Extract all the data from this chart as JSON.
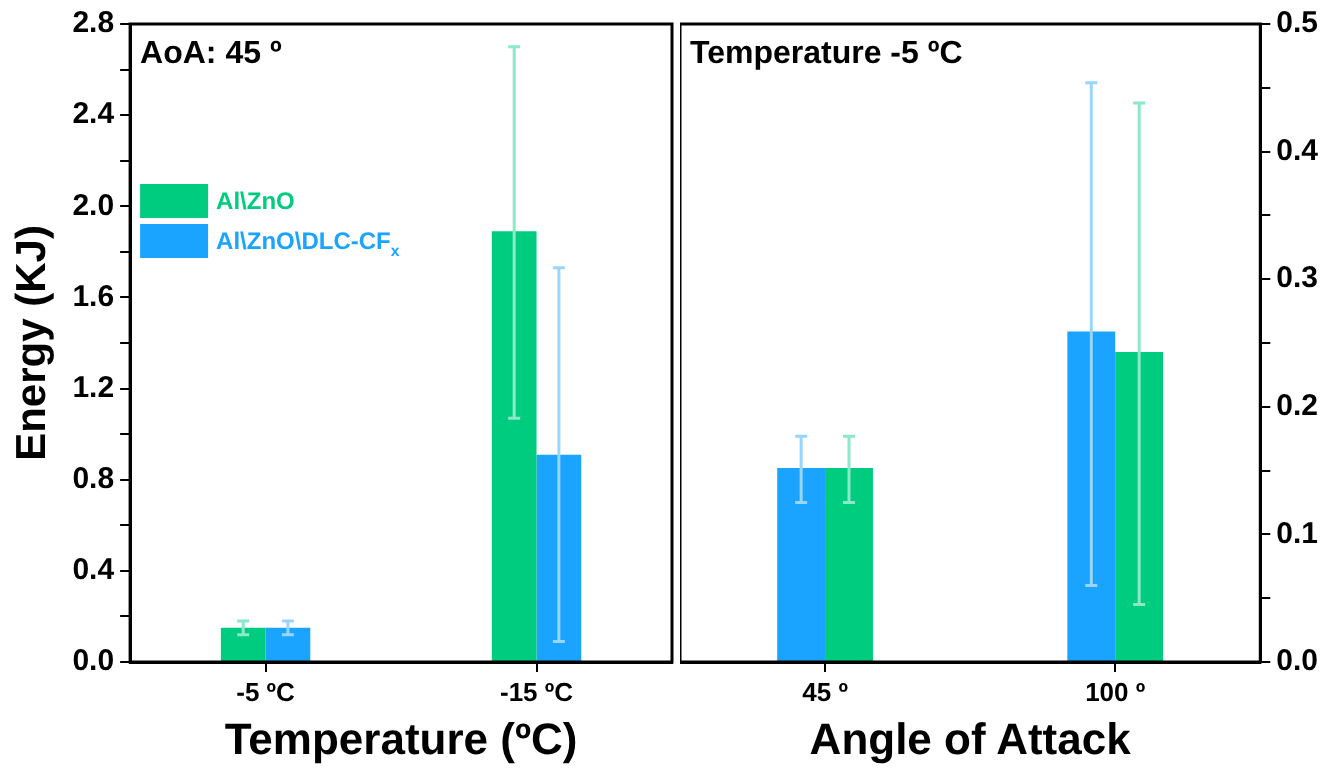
{
  "chart_data": [
    {
      "type": "bar",
      "xlabel": "Temperature (ºC)",
      "ylabel": "Energy (KJ)",
      "categories": [
        "-5 ºC",
        "-15 ºC"
      ],
      "series": [
        {
          "name": "Al\\ZnO",
          "color": "#00cc80",
          "values": [
            0.15,
            1.89
          ],
          "errors": [
            [
              0.12,
              0.18
            ],
            [
              1.07,
              2.7
            ]
          ]
        },
        {
          "name": "Al\\ZnO\\DLC-CF$_{x}$",
          "color": "#1aa3ff",
          "values": [
            0.15,
            0.91
          ],
          "errors": [
            [
              0.12,
              0.18
            ],
            [
              0.09,
              1.73
            ]
          ]
        }
      ],
      "ylim": [
        0,
        2.8
      ],
      "yticks": [
        {
          "value": 0,
          "label": "0.0"
        },
        {
          "value": 0.2,
          "label": null
        },
        0.4,
        {
          "value": 0.6,
          "label": null
        },
        0.8,
        {
          "value": 1.0,
          "label": null
        },
        1.2,
        {
          "value": 1.4,
          "label": null
        },
        1.6,
        {
          "value": 1.8,
          "label": null
        },
        {
          "value": 2.0,
          "label": "2.0"
        },
        {
          "value": 2.2,
          "label": null
        },
        2.4,
        {
          "value": 2.6,
          "label": null
        },
        2.8
      ],
      "annotations": [
        "AoA: 45 º"
      ],
      "legend": "top left",
      "grid": false
    },
    {
      "type": "bar",
      "xlabel": "Angle of Attack",
      "categories": [
        "45 º",
        "100 º"
      ],
      "series": [
        {
          "color": "#1aa3ff",
          "axis": "y2",
          "values": [
            0.152,
            0.259
          ],
          "errors": [
            [
              0.125,
              0.177
            ],
            [
              0.06,
              0.454
            ]
          ]
        },
        {
          "color": "#00cc80",
          "axis": "y2",
          "values": [
            0.152,
            0.243
          ],
          "errors": [
            [
              0.125,
              0.177
            ],
            [
              0.045,
              0.438
            ]
          ]
        }
      ],
      "y2lim": [
        0,
        0.5
      ],
      "y2ticks": [
        {
          "value": 0,
          "label": "0.0"
        },
        {
          "value": 0.05,
          "label": null
        },
        0.1,
        {
          "value": 0.15,
          "label": null
        },
        0.2,
        {
          "value": 0.25,
          "label": null
        },
        0.3,
        {
          "value": 0.35,
          "label": null
        },
        0.4,
        {
          "value": 0.45,
          "label": null
        },
        0.5
      ],
      "annotations": [
        "Temperature -5 ºC"
      ],
      "legend": false,
      "grid": false
    }
  ]
}
